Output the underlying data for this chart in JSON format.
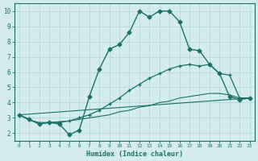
{
  "xlabel": "Humidex (Indice chaleur)",
  "bg_color": "#d4ecee",
  "grid_color": "#b8d8dc",
  "line_color": "#1a7068",
  "xlim": [
    -0.5,
    23.5
  ],
  "ylim": [
    1.5,
    10.5
  ],
  "xticks": [
    0,
    1,
    2,
    3,
    4,
    5,
    6,
    7,
    8,
    9,
    10,
    11,
    12,
    13,
    14,
    15,
    16,
    17,
    18,
    19,
    20,
    21,
    22,
    23
  ],
  "yticks": [
    2,
    3,
    4,
    5,
    6,
    7,
    8,
    9,
    10
  ],
  "line1_x": [
    0,
    1,
    2,
    3,
    4,
    5,
    6,
    7,
    8,
    9,
    10,
    11,
    12,
    13,
    14,
    15,
    16,
    17,
    18,
    19,
    20,
    21,
    22,
    23
  ],
  "line1_y": [
    3.2,
    2.9,
    2.6,
    2.7,
    2.6,
    1.9,
    2.2,
    4.4,
    6.2,
    7.5,
    7.8,
    8.6,
    10.0,
    9.6,
    10.0,
    10.0,
    9.3,
    7.5,
    7.4,
    6.5,
    5.9,
    4.4,
    4.2,
    4.3
  ],
  "line2_x": [
    0,
    1,
    2,
    3,
    4,
    5,
    6,
    7,
    8,
    9,
    10,
    11,
    12,
    13,
    14,
    15,
    16,
    17,
    18,
    19,
    20,
    21,
    22,
    23
  ],
  "line2_y": [
    3.2,
    2.9,
    2.6,
    2.7,
    2.7,
    2.8,
    3.0,
    3.2,
    3.5,
    3.9,
    4.3,
    4.8,
    5.2,
    5.6,
    5.9,
    6.2,
    6.4,
    6.5,
    6.4,
    6.5,
    5.9,
    5.8,
    4.3,
    4.3
  ],
  "line3_x": [
    0,
    1,
    2,
    3,
    4,
    5,
    6,
    7,
    8,
    9,
    10,
    11,
    12,
    13,
    14,
    15,
    16,
    17,
    18,
    19,
    20,
    21,
    22,
    23
  ],
  "line3_y": [
    3.2,
    2.85,
    2.7,
    2.7,
    2.75,
    2.8,
    2.9,
    3.0,
    3.1,
    3.2,
    3.4,
    3.5,
    3.7,
    3.8,
    4.0,
    4.1,
    4.3,
    4.4,
    4.5,
    4.6,
    4.6,
    4.5,
    4.3,
    4.3
  ],
  "line4_x": [
    0,
    23
  ],
  "line4_y": [
    3.2,
    4.3
  ]
}
